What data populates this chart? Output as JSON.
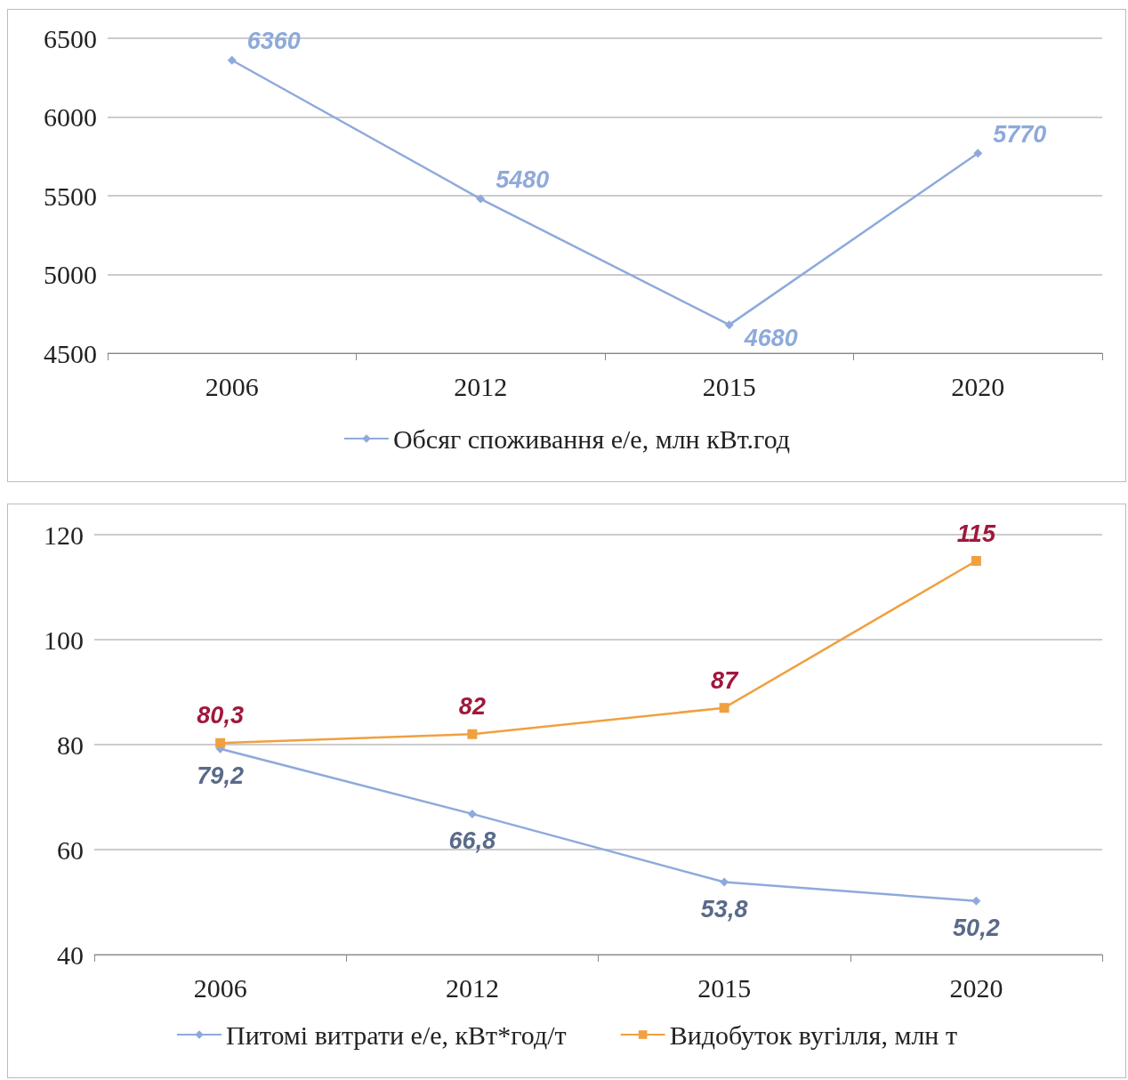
{
  "chart_data": [
    {
      "type": "line",
      "categories": [
        "2006",
        "2012",
        "2015",
        "2020"
      ],
      "series": [
        {
          "name": "Обсяг споживання е/е, млн кВт.год",
          "color": "#8eaadb",
          "marker": "diamond",
          "values": [
            6360,
            5480,
            4680,
            5770
          ]
        }
      ],
      "ylim": [
        4500,
        6500
      ],
      "yticks": [
        4500,
        5000,
        5500,
        6000,
        6500
      ],
      "grid": "y",
      "legend": "bottom",
      "data_labels": true
    },
    {
      "type": "line",
      "categories": [
        "2006",
        "2012",
        "2015",
        "2020"
      ],
      "series": [
        {
          "name": "Питомі витрати е/е, кВт*год/т",
          "color": "#8eaadb",
          "marker": "diamond",
          "values": [
            79.2,
            66.8,
            53.8,
            50.2
          ],
          "value_labels": [
            "79,2",
            "66,8",
            "53,8",
            "50,2"
          ]
        },
        {
          "name": "Видобуток вугілля, млн т",
          "color": "#f0a040",
          "marker": "square",
          "values": [
            80.3,
            82,
            87,
            115
          ],
          "value_labels": [
            "80,3",
            "82",
            "87",
            "115"
          ]
        }
      ],
      "ylim": [
        40,
        120
      ],
      "yticks": [
        40,
        60,
        80,
        100,
        120
      ],
      "grid": "y",
      "legend": "bottom",
      "data_labels": true
    }
  ]
}
